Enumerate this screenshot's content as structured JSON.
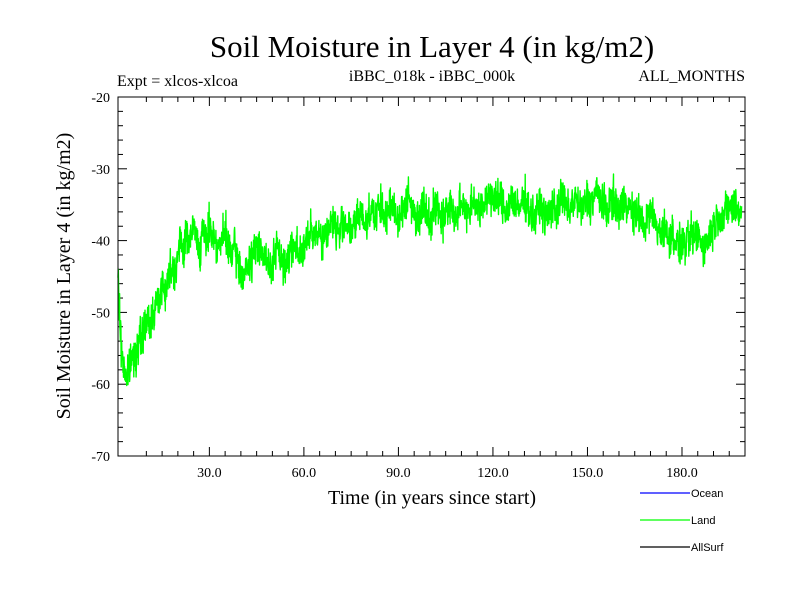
{
  "chart_data": {
    "type": "line",
    "title": "Soil Moisture in Layer 4 (in kg/m2)",
    "subtitle_left": "Expt = xlcos-xlcoa",
    "subtitle_center": "iBBC_018k - iBBC_000k",
    "subtitle_right": "ALL_MONTHS",
    "xlabel": "Time (in years since start)",
    "ylabel": "Soil Moisture in Layer 4 (in kg/m2)",
    "xlim": [
      1,
      200
    ],
    "ylim": [
      -70,
      -20
    ],
    "xticks": [
      30,
      60,
      90,
      120,
      150,
      180
    ],
    "xtick_labels": [
      "30.0",
      "60.0",
      "90.0",
      "120.0",
      "150.0",
      "180.0"
    ],
    "yticks": [
      -70,
      -60,
      -50,
      -40,
      -30,
      -20
    ],
    "ytick_labels": [
      "-70",
      "-60",
      "-50",
      "-40",
      "-30",
      "-20"
    ],
    "grid": false,
    "legend_position": "bottom-right",
    "series": [
      {
        "name": "Ocean",
        "color": "#0000ff",
        "values": []
      },
      {
        "name": "Land",
        "color": "#00ff00",
        "x_start": 1,
        "x_step": 1,
        "values": [
          -45,
          -55,
          -58,
          -59,
          -57,
          -56,
          -55,
          -54,
          -53,
          -51,
          -52,
          -50,
          -49,
          -48,
          -46,
          -47,
          -45,
          -43,
          -44,
          -42,
          -40,
          -41,
          -39,
          -40,
          -38,
          -40,
          -41,
          -39,
          -40,
          -38,
          -39,
          -40,
          -41,
          -40,
          -39,
          -41,
          -42,
          -41,
          -43,
          -44,
          -45,
          -44,
          -43,
          -42,
          -41,
          -40,
          -42,
          -43,
          -44,
          -43,
          -42,
          -41,
          -43,
          -44,
          -42,
          -41,
          -40,
          -41,
          -42,
          -41,
          -40,
          -39,
          -40,
          -38,
          -39,
          -40,
          -39,
          -38,
          -37,
          -38,
          -39,
          -38,
          -37,
          -38,
          -39,
          -38,
          -37,
          -36,
          -37,
          -38,
          -35,
          -36,
          -37,
          -35,
          -36,
          -37,
          -36,
          -35,
          -36,
          -37,
          -36,
          -35,
          -34,
          -35,
          -36,
          -37,
          -36,
          -35,
          -36,
          -37,
          -36,
          -35,
          -36,
          -37,
          -36,
          -35,
          -36,
          -37,
          -36,
          -35,
          -35,
          -36,
          -35,
          -34,
          -35,
          -36,
          -35,
          -34,
          -33,
          -34,
          -35,
          -34,
          -35,
          -36,
          -35,
          -34,
          -35,
          -36,
          -35,
          -34,
          -35,
          -36,
          -37,
          -36,
          -35,
          -36,
          -37,
          -36,
          -35,
          -36,
          -35,
          -34,
          -35,
          -36,
          -35,
          -34,
          -35,
          -36,
          -35,
          -34,
          -35,
          -34,
          -33,
          -34,
          -35,
          -36,
          -35,
          -34,
          -35,
          -36,
          -35,
          -34,
          -35,
          -36,
          -37,
          -36,
          -37,
          -38,
          -37,
          -36,
          -37,
          -38,
          -39,
          -38,
          -39,
          -40,
          -39,
          -40,
          -41,
          -40,
          -41,
          -40,
          -39,
          -40,
          -39,
          -40,
          -41,
          -40,
          -39,
          -38,
          -37,
          -36,
          -37,
          -36,
          -35,
          -36,
          -35,
          -36
        ],
        "noise_amplitude": 4
      },
      {
        "name": "AllSurf",
        "color": "#000000",
        "values": []
      }
    ]
  }
}
